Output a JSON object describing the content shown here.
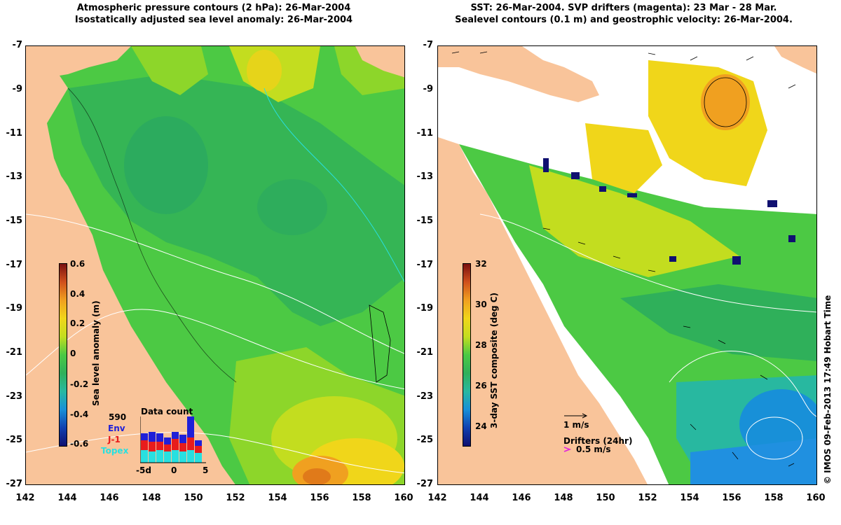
{
  "left_panel": {
    "title_line1": "Atmospheric pressure contours (2 hPa): 26-Mar-2004",
    "title_line2": "Isostatically adjusted sea level anomaly: 26-Mar-2004",
    "colorbar": {
      "title": "Sea level anomaly (m)",
      "ticks": [
        "0.6",
        "0.4",
        "0.2",
        "0",
        "-0.2",
        "-0.4",
        "-0.6"
      ],
      "range": [
        -0.6,
        0.6
      ]
    },
    "data_count": {
      "title": "Data count",
      "total": "590",
      "series": [
        {
          "name": "Env",
          "color": "#1f1fd8"
        },
        {
          "name": "J-1",
          "color": "#e81c1c"
        },
        {
          "name": "Topex",
          "color": "#28e0e0"
        }
      ],
      "x_ticks": [
        "-5d",
        "0",
        "5"
      ]
    }
  },
  "right_panel": {
    "title_line1": "SST: 26-Mar-2004. SVP drifters (magenta): 23 Mar - 28 Mar.",
    "title_line2": "Sealevel contours (0.1 m) and geostrophic velocity: 26-Mar-2004.",
    "colorbar": {
      "title": "3-day SST composite (deg C)",
      "ticks": [
        "32",
        "30",
        "28",
        "26",
        "24"
      ],
      "range": [
        23,
        32
      ]
    },
    "velocity_scale": "1 m/s",
    "drifters_title": "Drifters (24hr)",
    "drifters_scale": "0.5 m/s"
  },
  "axes": {
    "lat_ticks": [
      "-7",
      "-9",
      "-11",
      "-13",
      "-15",
      "-17",
      "-19",
      "-21",
      "-23",
      "-25",
      "-27"
    ],
    "lon_ticks": [
      "142",
      "144",
      "146",
      "148",
      "150",
      "152",
      "154",
      "156",
      "158",
      "160"
    ]
  },
  "credit": "© IMOS 09-Feb-2013 17:49 Hobart Time",
  "colors": {
    "land": "#f9c49a",
    "sea_mid": "#4cc944",
    "sea_low": "#2fb05a",
    "sea_high": "#f0d61a"
  }
}
